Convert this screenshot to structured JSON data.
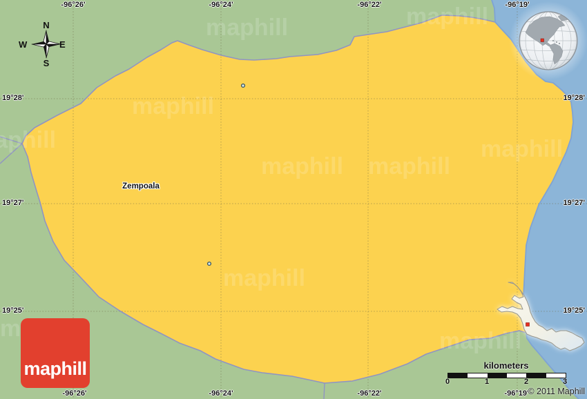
{
  "map": {
    "place_label": "Zempoala",
    "watermark_text": "maphill",
    "copyright": "© 2011 Maphill"
  },
  "compass": {
    "n": "N",
    "e": "E",
    "s": "S",
    "w": "W"
  },
  "grid": {
    "longitude_labels": [
      "-96°26'",
      "-96°24'",
      "-96°22'",
      "-96°19'"
    ],
    "latitude_labels": [
      "19°28'",
      "19°27'",
      "19°25'"
    ]
  },
  "scale_bar": {
    "title": "kilometers",
    "ticks": [
      "0",
      "1",
      "2",
      "3"
    ]
  },
  "logo": {
    "text": "maphill"
  },
  "icons": {
    "compass": "compass-rose-icon",
    "globe": "locator-globe-icon",
    "inset": "state-shape-inset",
    "marker": "location-marker-red"
  },
  "colors": {
    "land": "#a9c795",
    "region": "#fcd24f",
    "water": "#8cb5d8",
    "boundary": "#9094c2",
    "coast": "#7fa3d4",
    "grid": "#6e6a45",
    "logo_red": "#e2402e",
    "marker_red": "#e53022",
    "inset_fill": "#f6f3e7",
    "continent_gray": "#a2a9af"
  }
}
